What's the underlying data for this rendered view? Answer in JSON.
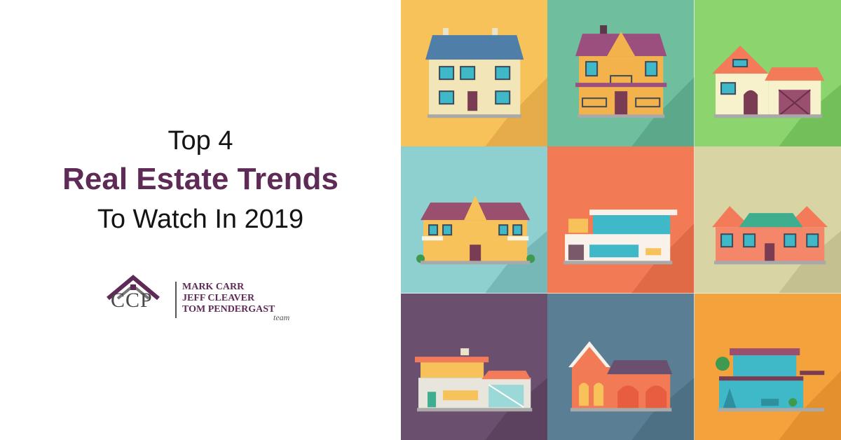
{
  "headline": {
    "line1": "Top 4",
    "line2": "Real Estate Trends",
    "line3": "To Watch In 2019"
  },
  "logo": {
    "mark": "CCP",
    "names": [
      "MARK CARR",
      "JEFF CLEAVER",
      "TOM PENDERGAST"
    ],
    "team": "team",
    "icon": "house-roof-logo-icon",
    "accent": "#5e2a56"
  },
  "tiles": [
    {
      "name": "tile-house-two-story-blue-roof",
      "bg": "#f7c25a"
    },
    {
      "name": "tile-house-victorian-balcony",
      "bg": "#6fbf9f"
    },
    {
      "name": "tile-house-cottage-garage",
      "bg": "#8bd46e"
    },
    {
      "name": "tile-house-manor-yellow",
      "bg": "#8ecfcf"
    },
    {
      "name": "tile-house-modern-glass",
      "bg": "#f27a54"
    },
    {
      "name": "tile-house-brick-green-roof",
      "bg": "#d8d4a4"
    },
    {
      "name": "tile-house-modern-garage",
      "bg": "#6b4f6f"
    },
    {
      "name": "tile-house-arched-windows",
      "bg": "#5a7f95"
    },
    {
      "name": "tile-house-modern-pool",
      "bg": "#f4a23c"
    }
  ]
}
